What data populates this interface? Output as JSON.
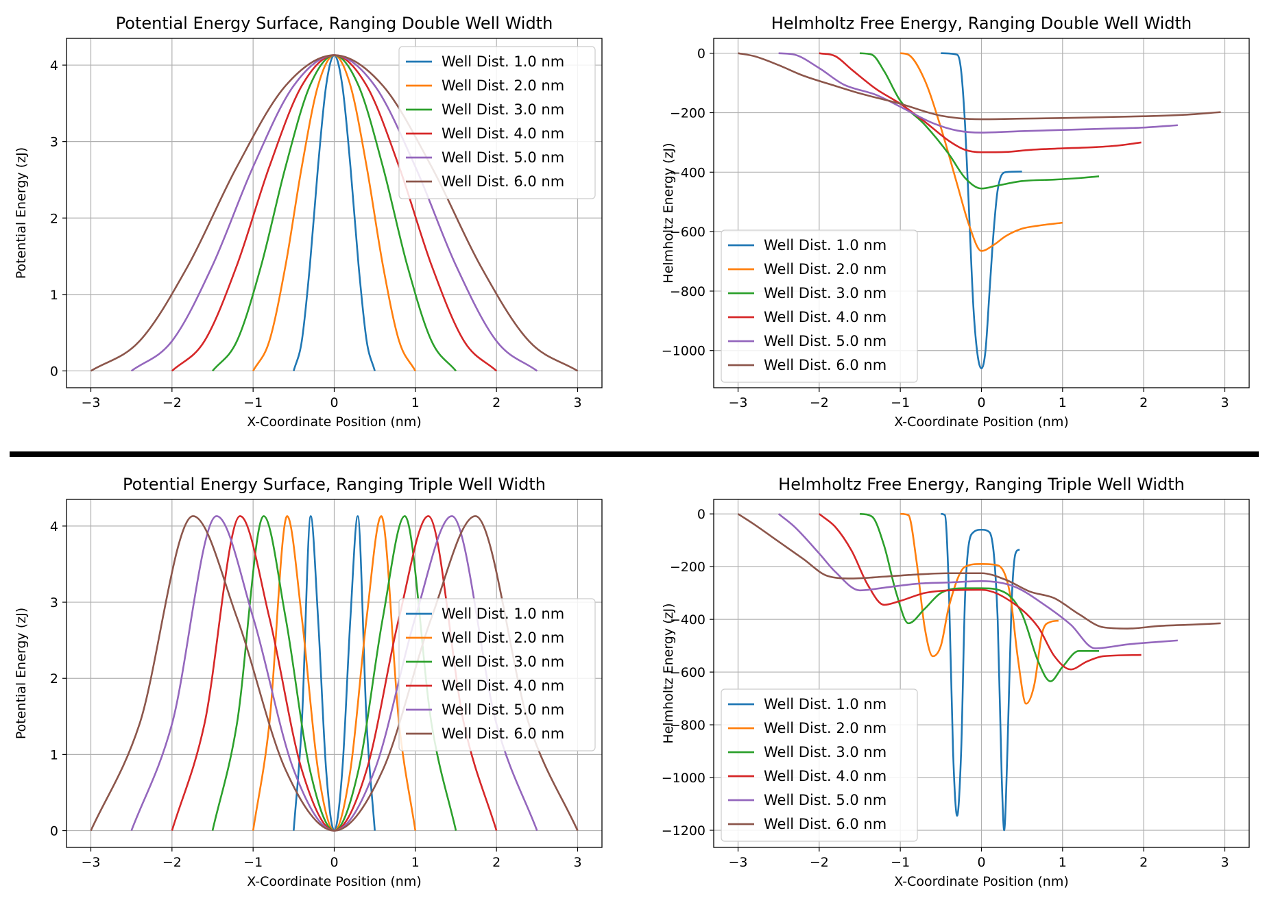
{
  "colors": [
    "#1f77b4",
    "#ff7f0e",
    "#2ca02c",
    "#d62728",
    "#9467bd",
    "#8c564b"
  ],
  "chart_data": [
    {
      "type": "line",
      "title": "Potential Energy Surface, Ranging Double Well Width",
      "xlabel": "X-Coordinate Position (nm)",
      "ylabel": "Potential Energy (zJ)",
      "xlim": [
        -3.3,
        3.3
      ],
      "ylim": [
        -0.22,
        4.35
      ],
      "xticks": [
        -3,
        -2,
        -1,
        0,
        1,
        2,
        3
      ],
      "yticks": [
        0,
        1,
        2,
        3,
        4
      ],
      "grid": true,
      "legend_position": "upper right",
      "series": [
        {
          "name": "Well Dist. 1.0 nm",
          "x": [
            -0.5,
            -0.4,
            -0.3,
            -0.2,
            -0.1,
            0,
            0.1,
            0.2,
            0.3,
            0.4,
            0.5
          ],
          "y": [
            0.0,
            0.39,
            1.38,
            2.67,
            3.73,
            4.13,
            3.73,
            2.67,
            1.38,
            0.39,
            0.0
          ]
        },
        {
          "name": "Well Dist. 2.0 nm",
          "x": [
            -1,
            -0.8,
            -0.6,
            -0.4,
            -0.2,
            0,
            0.2,
            0.4,
            0.6,
            0.8,
            1
          ],
          "y": [
            0.0,
            0.39,
            1.38,
            2.67,
            3.73,
            4.13,
            3.73,
            2.67,
            1.38,
            0.39,
            0.0
          ]
        },
        {
          "name": "Well Dist. 3.0 nm",
          "x": [
            -1.5,
            -1.2,
            -0.9,
            -0.6,
            -0.3,
            0,
            0.3,
            0.6,
            0.9,
            1.2,
            1.5
          ],
          "y": [
            0.0,
            0.39,
            1.38,
            2.67,
            3.73,
            4.13,
            3.73,
            2.67,
            1.38,
            0.39,
            0.0
          ]
        },
        {
          "name": "Well Dist. 4.0 nm",
          "x": [
            -2,
            -1.6,
            -1.2,
            -0.8,
            -0.4,
            0,
            0.4,
            0.8,
            1.2,
            1.6,
            2
          ],
          "y": [
            0.0,
            0.39,
            1.38,
            2.67,
            3.73,
            4.13,
            3.73,
            2.67,
            1.38,
            0.39,
            0.0
          ]
        },
        {
          "name": "Well Dist. 5.0 nm",
          "x": [
            -2.5,
            -2,
            -1.5,
            -1,
            -0.5,
            0,
            0.5,
            1,
            1.5,
            2,
            2.5
          ],
          "y": [
            0.0,
            0.39,
            1.38,
            2.67,
            3.73,
            4.13,
            3.73,
            2.67,
            1.38,
            0.39,
            0.0
          ]
        },
        {
          "name": "Well Dist. 6.0 nm",
          "x": [
            -3,
            -2.4,
            -1.8,
            -1.2,
            -0.6,
            0,
            0.6,
            1.2,
            1.8,
            2.4,
            3
          ],
          "y": [
            0.0,
            0.39,
            1.38,
            2.67,
            3.73,
            4.13,
            3.73,
            2.67,
            1.38,
            0.39,
            0.0
          ]
        }
      ]
    },
    {
      "type": "line",
      "title": "Helmholtz Free Energy, Ranging Double Well Width",
      "xlabel": "X-Coordinate Position (nm)",
      "ylabel": "Helmholtz Energy (zJ)",
      "xlim": [
        -3.3,
        3.3
      ],
      "ylim": [
        -1125,
        50
      ],
      "xticks": [
        -3,
        -2,
        -1,
        0,
        1,
        2,
        3
      ],
      "yticks": [
        0,
        -200,
        -400,
        -600,
        -800,
        -1000
      ],
      "ytick_labels": [
        "0",
        "−200",
        "−400",
        "−600",
        "−800",
        "−1000"
      ],
      "grid": true,
      "legend_position": "lower left",
      "series": [
        {
          "name": "Well Dist. 1.0 nm",
          "x": [
            -0.5,
            -0.3,
            -0.25,
            -0.2,
            -0.15,
            -0.1,
            -0.05,
            0,
            0.05,
            0.1,
            0.15,
            0.2,
            0.3,
            0.5
          ],
          "y": [
            0,
            -5,
            -60,
            -250,
            -550,
            -850,
            -1010,
            -1060,
            -1000,
            -800,
            -600,
            -460,
            -400,
            -398
          ]
        },
        {
          "name": "Well Dist. 2.0 nm",
          "x": [
            -1,
            -0.9,
            -0.7,
            -0.5,
            -0.3,
            -0.15,
            0,
            0.15,
            0.3,
            0.5,
            0.7,
            1
          ],
          "y": [
            0,
            -5,
            -90,
            -250,
            -440,
            -580,
            -665,
            -645,
            -615,
            -590,
            -580,
            -570
          ]
        },
        {
          "name": "Well Dist. 3.0 nm",
          "x": [
            -1.5,
            -1.35,
            -1.2,
            -1.0,
            -0.7,
            -0.4,
            -0.2,
            0,
            0.2,
            0.5,
            0.9,
            1.2,
            1.45
          ],
          "y": [
            0,
            -5,
            -60,
            -160,
            -240,
            -340,
            -420,
            -455,
            -445,
            -430,
            -425,
            -420,
            -414
          ]
        },
        {
          "name": "Well Dist. 4.0 nm",
          "x": [
            -2,
            -1.8,
            -1.6,
            -1.3,
            -1.0,
            -0.7,
            -0.4,
            -0.2,
            0,
            0.3,
            0.6,
            1.0,
            1.4,
            1.7,
            1.97
          ],
          "y": [
            0,
            -10,
            -55,
            -120,
            -170,
            -230,
            -295,
            -325,
            -333,
            -332,
            -325,
            -320,
            -316,
            -310,
            -300
          ]
        },
        {
          "name": "Well Dist. 5.0 nm",
          "x": [
            -2.5,
            -2.3,
            -2.0,
            -1.7,
            -1.3,
            -1.0,
            -0.6,
            -0.3,
            0,
            0.5,
            1.0,
            1.5,
            2.0,
            2.42
          ],
          "y": [
            0,
            -5,
            -50,
            -105,
            -140,
            -180,
            -235,
            -260,
            -267,
            -262,
            -258,
            -254,
            -250,
            -242
          ]
        },
        {
          "name": "Well Dist. 6.0 nm",
          "x": [
            -3,
            -2.8,
            -2.5,
            -2.2,
            -1.8,
            -1.5,
            -1.0,
            -0.5,
            0,
            0.5,
            1.0,
            1.5,
            2.0,
            2.5,
            2.95
          ],
          "y": [
            0,
            -10,
            -40,
            -75,
            -110,
            -135,
            -170,
            -210,
            -222,
            -220,
            -218,
            -215,
            -212,
            -207,
            -198
          ]
        }
      ]
    },
    {
      "type": "line",
      "title": "Potential Energy Surface, Ranging Triple Well Width",
      "xlabel": "X-Coordinate Position (nm)",
      "ylabel": "Potential Energy (zJ)",
      "xlim": [
        -3.3,
        3.3
      ],
      "ylim": [
        -0.22,
        4.35
      ],
      "xticks": [
        -3,
        -2,
        -1,
        0,
        1,
        2,
        3
      ],
      "yticks": [
        0,
        1,
        2,
        3,
        4
      ],
      "grid": true,
      "legend_position": "center right",
      "series": [
        {
          "name": "Well Dist. 1.0 nm",
          "x": [
            -0.5,
            -0.4,
            -0.29,
            -0.2,
            -0.1,
            0,
            0.1,
            0.2,
            0.29,
            0.4,
            0.5
          ],
          "y": [
            0,
            1.4,
            4.13,
            2.8,
            0.8,
            0,
            0.8,
            2.8,
            4.13,
            1.4,
            0
          ]
        },
        {
          "name": "Well Dist. 2.0 nm",
          "x": [
            -1,
            -0.8,
            -0.58,
            -0.4,
            -0.2,
            0,
            0.2,
            0.4,
            0.58,
            0.8,
            1
          ],
          "y": [
            0,
            1.4,
            4.13,
            2.8,
            0.8,
            0,
            0.8,
            2.8,
            4.13,
            1.4,
            0
          ]
        },
        {
          "name": "Well Dist. 3.0 nm",
          "x": [
            -1.5,
            -1.2,
            -0.87,
            -0.6,
            -0.3,
            0,
            0.3,
            0.6,
            0.87,
            1.2,
            1.5
          ],
          "y": [
            0,
            1.4,
            4.13,
            2.8,
            0.8,
            0,
            0.8,
            2.8,
            4.13,
            1.4,
            0
          ]
        },
        {
          "name": "Well Dist. 4.0 nm",
          "x": [
            -2,
            -1.6,
            -1.16,
            -0.8,
            -0.4,
            0,
            0.4,
            0.8,
            1.16,
            1.6,
            2
          ],
          "y": [
            0,
            1.4,
            4.13,
            2.8,
            0.8,
            0,
            0.8,
            2.8,
            4.13,
            1.4,
            0
          ]
        },
        {
          "name": "Well Dist. 5.0 nm",
          "x": [
            -2.5,
            -2,
            -1.45,
            -1,
            -0.5,
            0,
            0.5,
            1,
            1.45,
            2,
            2.5
          ],
          "y": [
            0,
            1.4,
            4.13,
            2.8,
            0.8,
            0,
            0.8,
            2.8,
            4.13,
            1.4,
            0
          ]
        },
        {
          "name": "Well Dist. 6.0 nm",
          "x": [
            -3,
            -2.4,
            -1.74,
            -1.2,
            -0.6,
            0,
            0.6,
            1.2,
            1.74,
            2.4,
            3
          ],
          "y": [
            0,
            1.4,
            4.13,
            2.8,
            0.8,
            0,
            0.8,
            2.8,
            4.13,
            1.4,
            0
          ]
        }
      ]
    },
    {
      "type": "line",
      "title": "Helmholtz Free Energy, Ranging Triple Well Width",
      "xlabel": "X-Coordinate Position (nm)",
      "ylabel": "Helmholtz Energy (zJ)",
      "xlim": [
        -3.3,
        3.3
      ],
      "ylim": [
        -1265,
        55
      ],
      "xticks": [
        -3,
        -2,
        -1,
        0,
        1,
        2,
        3
      ],
      "yticks": [
        0,
        -200,
        -400,
        -600,
        -800,
        -1000,
        -1200
      ],
      "ytick_labels": [
        "0",
        "−200",
        "−400",
        "−600",
        "−800",
        "−1000",
        "−1200"
      ],
      "grid": true,
      "legend_position": "lower left",
      "series": [
        {
          "name": "Well Dist. 1.0 nm",
          "x": [
            -0.5,
            -0.45,
            -0.4,
            -0.35,
            -0.3,
            -0.25,
            -0.2,
            -0.1,
            0,
            0.1,
            0.2,
            0.25,
            0.28,
            0.32,
            0.37,
            0.42,
            0.47
          ],
          "y": [
            0,
            -5,
            -300,
            -900,
            -1145,
            -900,
            -300,
            -70,
            -60,
            -70,
            -400,
            -1000,
            -1200,
            -900,
            -350,
            -150,
            -135
          ]
        },
        {
          "name": "Well Dist. 2.0 nm",
          "x": [
            -1,
            -0.9,
            -0.8,
            -0.7,
            -0.6,
            -0.5,
            -0.4,
            -0.2,
            0,
            0.2,
            0.35,
            0.45,
            0.55,
            0.65,
            0.75,
            0.85,
            0.95
          ],
          "y": [
            0,
            -5,
            -180,
            -430,
            -540,
            -500,
            -350,
            -200,
            -190,
            -195,
            -300,
            -550,
            -720,
            -650,
            -450,
            -410,
            -405
          ]
        },
        {
          "name": "Well Dist. 3.0 nm",
          "x": [
            -1.5,
            -1.35,
            -1.2,
            -1.05,
            -0.9,
            -0.7,
            -0.5,
            -0.2,
            0,
            0.3,
            0.5,
            0.7,
            0.85,
            1.0,
            1.2,
            1.45
          ],
          "y": [
            0,
            -10,
            -120,
            -300,
            -415,
            -360,
            -300,
            -282,
            -282,
            -300,
            -380,
            -560,
            -635,
            -580,
            -520,
            -520
          ]
        },
        {
          "name": "Well Dist. 4.0 nm",
          "x": [
            -2,
            -1.8,
            -1.6,
            -1.4,
            -1.2,
            -1.0,
            -0.7,
            -0.4,
            0,
            0.4,
            0.7,
            0.9,
            1.1,
            1.3,
            1.5,
            1.97
          ],
          "y": [
            0,
            -50,
            -140,
            -270,
            -345,
            -330,
            -300,
            -290,
            -288,
            -340,
            -430,
            -540,
            -590,
            -560,
            -540,
            -535
          ]
        },
        {
          "name": "Well Dist. 5.0 nm",
          "x": [
            -2.5,
            -2.3,
            -2.0,
            -1.8,
            -1.5,
            -1.2,
            -0.8,
            -0.4,
            0,
            0.4,
            0.8,
            1.1,
            1.4,
            1.8,
            2.2,
            2.42
          ],
          "y": [
            0,
            -50,
            -150,
            -220,
            -290,
            -280,
            -265,
            -260,
            -255,
            -275,
            -350,
            -420,
            -510,
            -495,
            -485,
            -480
          ]
        },
        {
          "name": "Well Dist. 6.0 nm",
          "x": [
            -3,
            -2.8,
            -2.5,
            -2.2,
            -1.9,
            -1.6,
            -1.2,
            -0.8,
            -0.4,
            0,
            0.3,
            0.6,
            0.9,
            1.2,
            1.5,
            1.8,
            2.2,
            2.6,
            2.95
          ],
          "y": [
            0,
            -40,
            -105,
            -170,
            -235,
            -245,
            -238,
            -230,
            -225,
            -225,
            -250,
            -295,
            -320,
            -380,
            -430,
            -435,
            -425,
            -420,
            -415
          ]
        }
      ]
    }
  ]
}
